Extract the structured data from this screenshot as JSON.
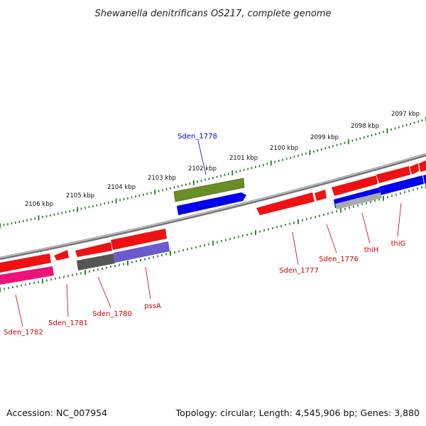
{
  "title": "Shewanella denitrificans OS217, complete genome",
  "footer": {
    "accession": "Accession: NC_007954",
    "summary": "Topology: circular; Length: 4,545,906 bp; Genes: 3,880"
  },
  "colors": {
    "backbone": "#7a7a7a",
    "ticks": "#1e7a1e",
    "label_red": "#cc0000",
    "label_blue": "#0000cc",
    "gene_red": "#ee1111",
    "gene_blue": "#0000ee",
    "gene_pink": "#ee1177",
    "gene_olive": "#6b8e23",
    "gene_grey": "#555555",
    "gene_purple": "#6a5acd",
    "gene_lightgrey": "#aaaaaa"
  },
  "scale": {
    "labels": [
      "2106 kbp",
      "2105 kbp",
      "2104 kbp",
      "2103 kbp",
      "2102 kbp",
      "2101 kbp",
      "2100 kbp",
      "2099 kbp",
      "2098 kbp",
      "2097 kbp"
    ]
  },
  "gene_labels": [
    {
      "text": "Sden_1778",
      "color": "blue"
    },
    {
      "text": "Sden_1777",
      "color": "red"
    },
    {
      "text": "Sden_1776",
      "color": "red"
    },
    {
      "text": "thiH",
      "color": "red"
    },
    {
      "text": "thiG",
      "color": "red"
    },
    {
      "text": "pssA",
      "color": "red"
    },
    {
      "text": "Sden_1780",
      "color": "red"
    },
    {
      "text": "Sden_1781",
      "color": "red"
    },
    {
      "text": "Sden_1782",
      "color": "red"
    }
  ]
}
